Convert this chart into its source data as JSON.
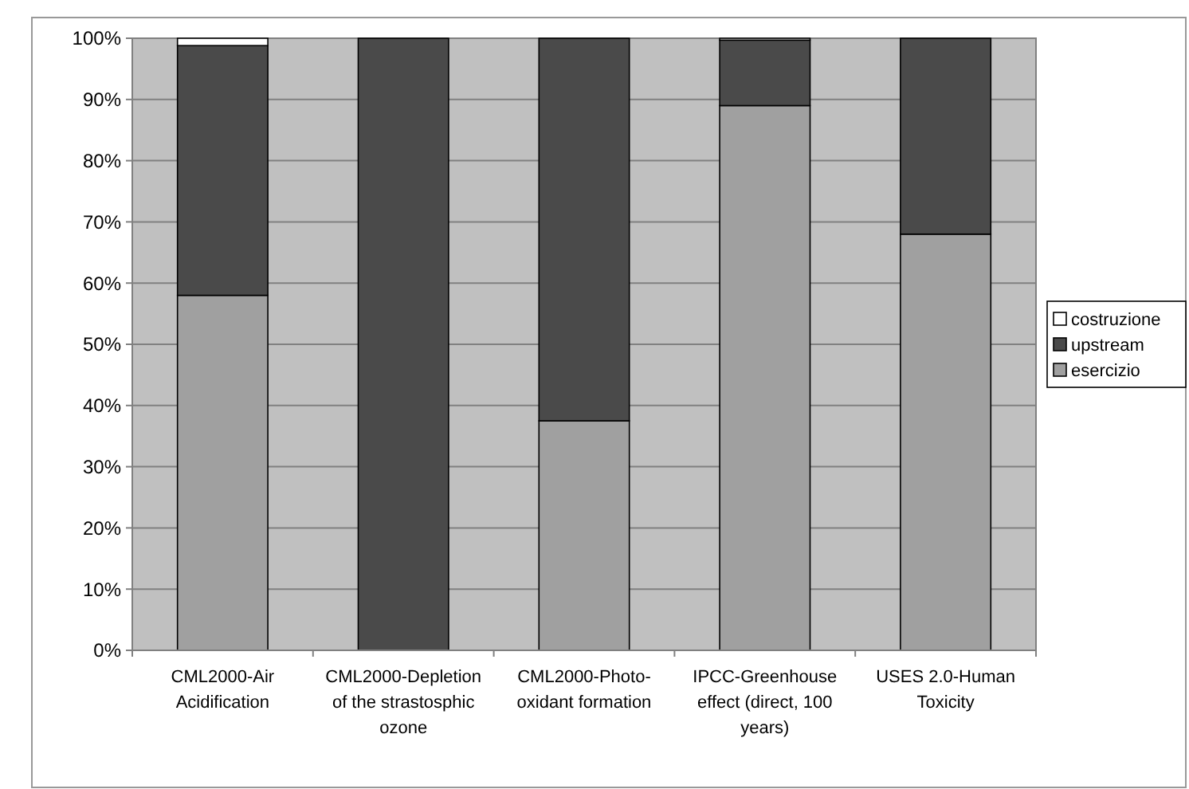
{
  "chart_data": {
    "type": "bar",
    "stacked": true,
    "categories": [
      "CML2000-Air Acidification",
      "CML2000-Depletion of the strastosphic ozone",
      "CML2000-Photo-oxidant formation",
      "IPCC-Greenhouse effect (direct, 100 years)",
      "USES 2.0-Human Toxicity"
    ],
    "series": [
      {
        "name": "esercizio",
        "color": "#a0a0a0",
        "values": [
          58,
          0,
          37.5,
          89,
          68
        ]
      },
      {
        "name": "upstream",
        "color": "#4a4a4a",
        "values": [
          40.8,
          100,
          62.5,
          10.7,
          32
        ]
      },
      {
        "name": "costruzione",
        "color": "#ffffff",
        "values": [
          1.2,
          0,
          0,
          0.3,
          0
        ]
      }
    ],
    "ylim": [
      0,
      100
    ],
    "yticks": [
      {
        "value": 0,
        "label": "0%"
      },
      {
        "value": 10,
        "label": "10%"
      },
      {
        "value": 20,
        "label": "20%"
      },
      {
        "value": 30,
        "label": "30%"
      },
      {
        "value": 40,
        "label": "40%"
      },
      {
        "value": 50,
        "label": "50%"
      },
      {
        "value": 60,
        "label": "60%"
      },
      {
        "value": 70,
        "label": "70%"
      },
      {
        "value": 80,
        "label": "80%"
      },
      {
        "value": 90,
        "label": "90%"
      },
      {
        "value": 100,
        "label": "100%"
      }
    ],
    "grid": "y",
    "legend": "right"
  }
}
